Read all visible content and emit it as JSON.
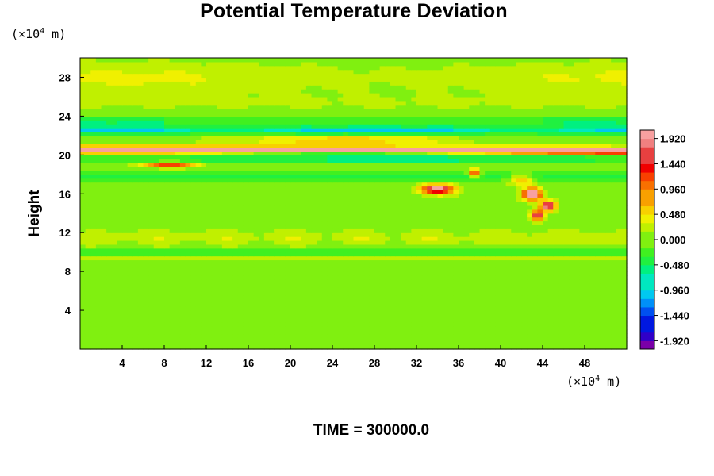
{
  "chart_data": {
    "type": "heatmap",
    "title": "Potential Temperature Deviation",
    "ylabel": "Height",
    "y_unit_prefix": "(×10",
    "y_unit_exp": "4",
    "y_unit_suffix": " m)",
    "x_unit_prefix": "(×10",
    "x_unit_exp": "4",
    "x_unit_suffix": " m)",
    "xlim": [
      0,
      52
    ],
    "ylim": [
      0,
      30
    ],
    "x_ticks": [
      "4",
      "8",
      "12",
      "16",
      "20",
      "24",
      "28",
      "32",
      "36",
      "40",
      "44",
      "48"
    ],
    "y_ticks": [
      "4",
      "8",
      "12",
      "16",
      "20",
      "24",
      "28"
    ],
    "colorbar_ticks": [
      "1.920",
      "1.440",
      "0.960",
      "0.480",
      "0.000",
      "-0.480",
      "-0.960",
      "-1.440",
      "-1.920"
    ],
    "colorbar_range": [
      -2.08,
      2.08
    ],
    "colorbar_levels": 26,
    "colors": [
      "#7a00a8",
      "#3000c8",
      "#0018e0",
      "#0050f0",
      "#0090f8",
      "#00c8f0",
      "#00e8c0",
      "#00f080",
      "#20f040",
      "#40f020",
      "#80f010",
      "#c0f000",
      "#f0f000",
      "#f8d000",
      "#f8a000",
      "#f87000",
      "#f84000",
      "#f00000",
      "#e84040",
      "#f08080",
      "#f8a0a0"
    ],
    "footer": "TIME = 300000.0"
  }
}
